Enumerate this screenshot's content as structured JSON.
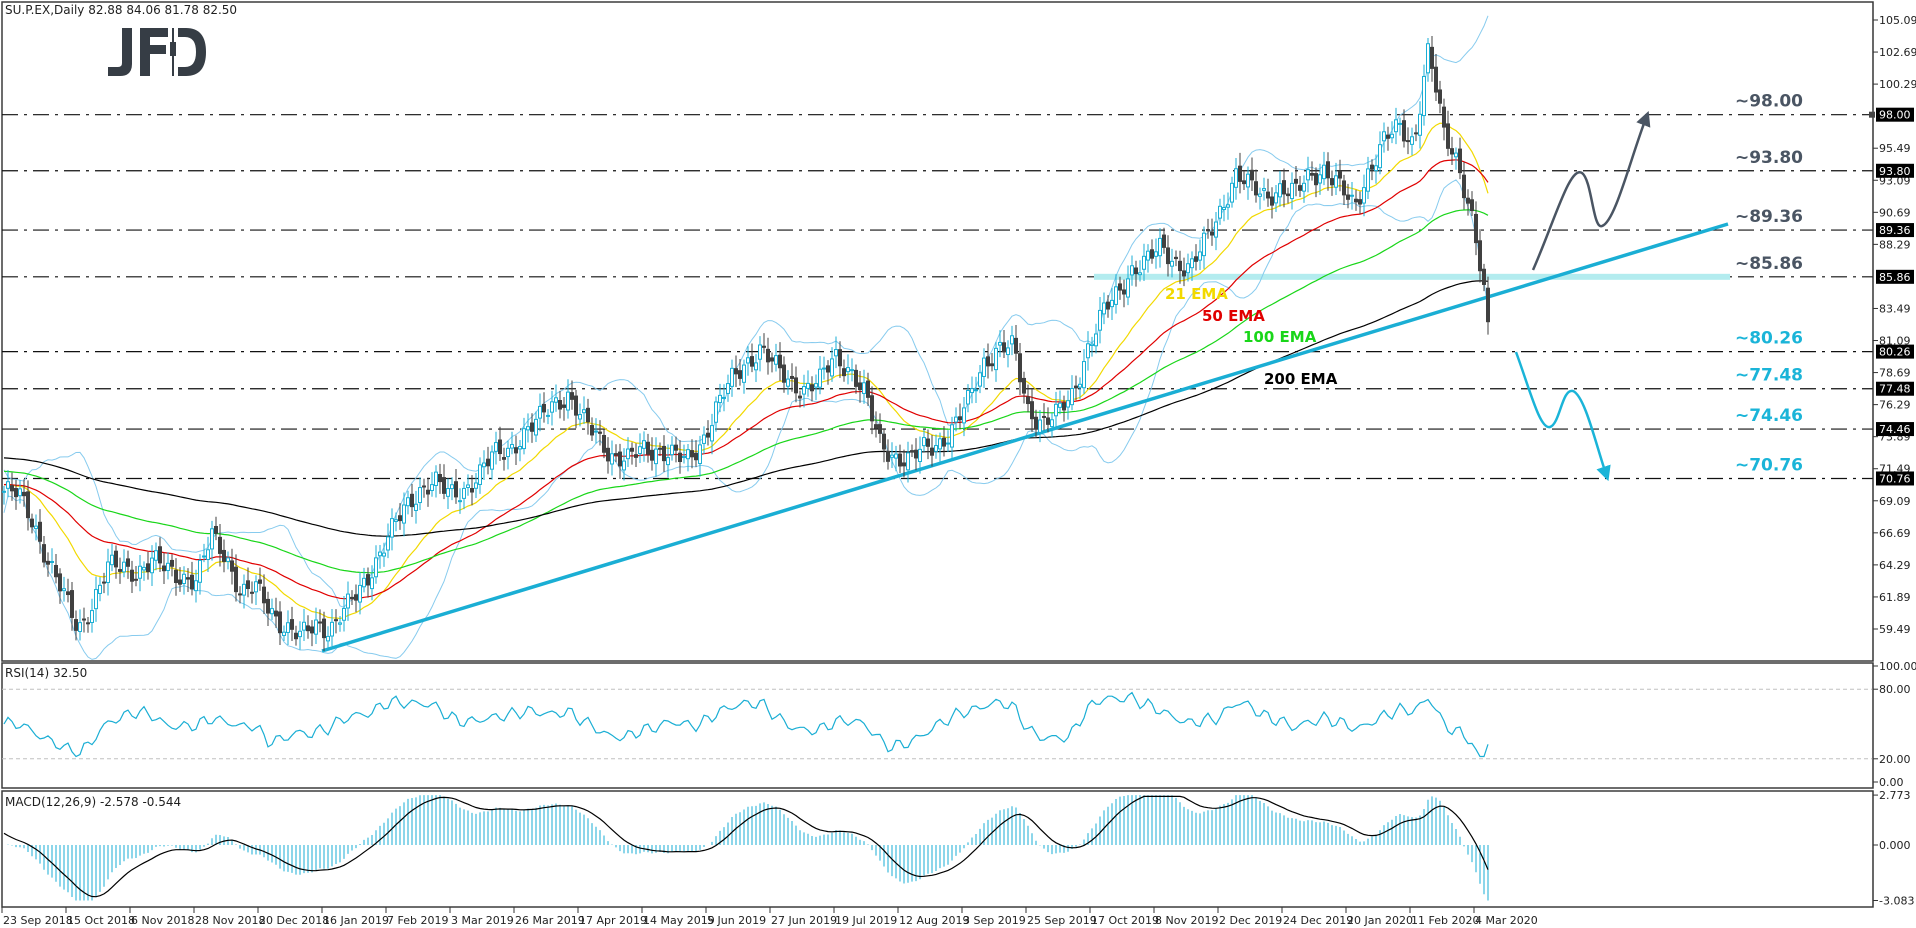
{
  "header": {
    "symbol_line": "SU.P.EX,Daily  82.88 84.06 81.78 82.50",
    "logo_text": "JFD"
  },
  "rsi_panel": {
    "label": "RSI(14) 32.50"
  },
  "macd_panel": {
    "label": "MACD(12,26,9) -2.578 -0.544"
  },
  "colors": {
    "bull_candle": "#1aaed4",
    "bear_candle": "#404040",
    "ema21": "#f2d900",
    "ema50": "#e00000",
    "ema100": "#19d619",
    "ema200": "#000000",
    "bollinger": "#87cbee",
    "trendline": "#1aaed4",
    "resistance_text": "#4a5563",
    "support_text": "#1ab4d8",
    "highlight_band": "#b3ecef",
    "rsi_line": "#1aaed4",
    "macd_hist": "#1aaed4",
    "macd_signal": "#000000"
  },
  "chart_data": {
    "type": "candlestick",
    "title": "SU.P.EX, Daily",
    "ohlc_last": {
      "open": 82.88,
      "high": 84.06,
      "low": 81.78,
      "close": 82.5
    },
    "y_axis_ticks": [
      105.09,
      102.69,
      100.29,
      95.49,
      93.09,
      90.69,
      88.29,
      83.49,
      81.09,
      78.69,
      76.29,
      73.89,
      71.49,
      69.09,
      66.69,
      64.29,
      61.89,
      59.49
    ],
    "ylim": [
      57.5,
      106.5
    ],
    "x_axis_labels": [
      "23 Sep 2018",
      "15 Oct 2018",
      "6 Nov 2018",
      "28 Nov 2018",
      "20 Dec 2018",
      "16 Jan 2019",
      "7 Feb 2019",
      "3 Mar 2019",
      "26 Mar 2019",
      "17 Apr 2019",
      "14 May 2019",
      "5 Jun 2019",
      "27 Jun 2019",
      "19 Jul 2019",
      "12 Aug 2019",
      "3 Sep 2019",
      "25 Sep 2019",
      "17 Oct 2019",
      "8 Nov 2019",
      "2 Dec 2019",
      "24 Dec 2019",
      "20 Jan 2020",
      "11 Feb 2020",
      "4 Mar 2020"
    ],
    "weekly_closes_approx": [
      69.8,
      69.5,
      67.5,
      64.5,
      62.0,
      59.5,
      61.5,
      64.0,
      64.2,
      63.8,
      64.5,
      64.0,
      63.5,
      63.0,
      66.5,
      65.0,
      62.0,
      62.5,
      61.0,
      59.5,
      58.8,
      60.0,
      59.5,
      60.8,
      62.5,
      64.5,
      66.5,
      68.5,
      70.0,
      70.5,
      69.5,
      70.0,
      71.0,
      72.5,
      73.0,
      74.0,
      75.0,
      76.5,
      77.0,
      75.0,
      74.0,
      72.5,
      72.0,
      73.0,
      73.0,
      72.5,
      72.0,
      73.5,
      76.0,
      78.0,
      79.5,
      80.5,
      79.0,
      78.0,
      77.5,
      78.0,
      80.0,
      79.0,
      77.0,
      73.5,
      72.5,
      72.0,
      73.0,
      73.5,
      74.5,
      76.5,
      79.5,
      80.5,
      80.5,
      76.0,
      75.0,
      75.5,
      77.0,
      80.5,
      83.0,
      84.5,
      86.5,
      87.0,
      88.0,
      87.0,
      86.5,
      88.5,
      91.0,
      93.5,
      92.5,
      92.0,
      92.5,
      92.0,
      93.5,
      94.0,
      92.5,
      91.0,
      94.0,
      96.0,
      97.0,
      96.0,
      103.0,
      96.5,
      94.5,
      90.0,
      82.5
    ],
    "series": [
      {
        "name": "21 EMA",
        "color": "#f2d900"
      },
      {
        "name": "50 EMA",
        "color": "#e00000"
      },
      {
        "name": "100 EMA",
        "color": "#19d619"
      },
      {
        "name": "200 EMA",
        "color": "#000000"
      },
      {
        "name": "Bollinger Bands",
        "color": "#87cbee"
      }
    ],
    "trendline": {
      "from": {
        "date": "16 Jan 2019",
        "price": 59.4
      },
      "to": {
        "date": "Apr 2020 (projected)",
        "price": 89.4
      }
    },
    "levels": [
      {
        "label": "~98.00",
        "value": 98.0,
        "type": "resistance"
      },
      {
        "label": "~93.80",
        "value": 93.8,
        "type": "resistance"
      },
      {
        "label": "~89.36",
        "value": 89.36,
        "type": "resistance"
      },
      {
        "label": "~85.86",
        "value": 85.86,
        "type": "resistance",
        "highlighted": true
      },
      {
        "label": "~80.26",
        "value": 80.26,
        "type": "support"
      },
      {
        "label": "~77.48",
        "value": 77.48,
        "type": "support"
      },
      {
        "label": "~74.46",
        "value": 74.46,
        "type": "support"
      },
      {
        "label": "~70.76",
        "value": 70.76,
        "type": "support"
      }
    ],
    "annotations": [
      {
        "text": "21 EMA",
        "color": "#f2d900"
      },
      {
        "text": "50 EMA",
        "color": "#e00000"
      },
      {
        "text": "100 EMA",
        "color": "#19d619"
      },
      {
        "text": "200 EMA",
        "color": "#000000"
      },
      {
        "text": "bullish scenario arrow to ~98.00",
        "color": "#4a5563"
      },
      {
        "text": "bearish scenario arrow to ~70.76",
        "color": "#1ab4d8"
      }
    ],
    "subcharts": [
      {
        "type": "line",
        "title": "RSI(14) 32.50",
        "ylim": [
          0,
          100
        ],
        "y_ticks": [
          100.0,
          80.0,
          20.0,
          0.0
        ],
        "levels": [
          80,
          20
        ],
        "last_value": 32.5
      },
      {
        "type": "bar+line",
        "title": "MACD(12,26,9) -2.578 -0.544",
        "y_ticks": [
          2.773,
          0.0,
          -3.083
        ],
        "macd_last": -2.578,
        "signal_last": -0.544
      }
    ]
  },
  "axis_tags": [
    "98.00",
    "93.80",
    "89.36",
    "85.86",
    "80.26",
    "77.48",
    "74.46",
    "70.76"
  ],
  "rsi_ticks": [
    "100.00",
    "80.00",
    "20.00",
    "0.00"
  ],
  "macd_ticks": [
    "2.773",
    "0.000",
    "-3.083"
  ]
}
